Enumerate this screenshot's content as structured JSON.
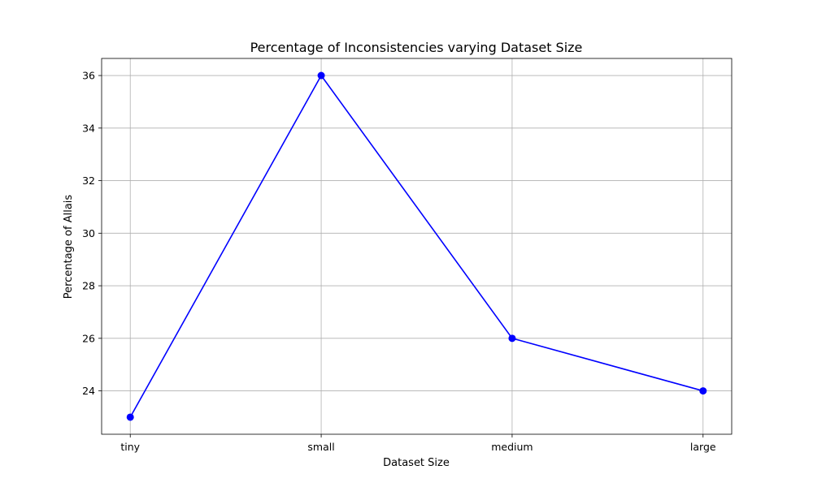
{
  "chart_data": {
    "type": "line",
    "title": "Percentage of Inconsistencies varying Dataset Size",
    "xlabel": "Dataset Size",
    "ylabel": "Percentage of Allais",
    "categories": [
      "tiny",
      "small",
      "medium",
      "large"
    ],
    "series": [
      {
        "values": [
          23,
          36,
          26,
          24
        ],
        "color": "#0000ff",
        "marker": "circle"
      }
    ],
    "ylim": [
      22.35,
      36.65
    ],
    "yticks": [
      24,
      26,
      28,
      30,
      32,
      34,
      36
    ],
    "grid": true,
    "legend": "none"
  }
}
